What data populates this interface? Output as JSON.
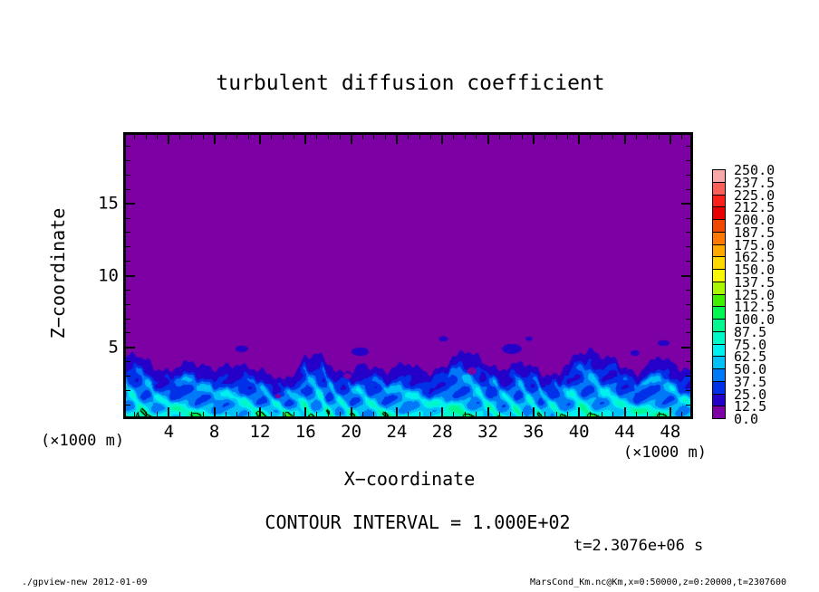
{
  "title": "turbulent diffusion coefficient",
  "axes": {
    "xlabel": "X−coordinate",
    "ylabel": "Z−coordinate",
    "x_unit_left": "(×1000 m)",
    "x_unit_right": "(×1000 m)",
    "xtick_labels": [
      "4",
      "8",
      "12",
      "16",
      "20",
      "24",
      "28",
      "32",
      "36",
      "40",
      "44",
      "48"
    ],
    "xtick_values": [
      4,
      8,
      12,
      16,
      20,
      24,
      28,
      32,
      36,
      40,
      44,
      48
    ],
    "ytick_labels": [
      "5",
      "10",
      "15"
    ],
    "ytick_values": [
      5,
      10,
      15
    ]
  },
  "annotations": {
    "contour_interval": "CONTOUR INTERVAL = 1.000E+02",
    "time": "t=2.3076e+06 s"
  },
  "footer": {
    "left": "./gpview-new  2012-01-09",
    "right": "MarsCond_Km.nc@Km,x=0:50000,z=0:20000,t=2307600"
  },
  "colorbar": {
    "labels_top_to_bottom": [
      "250.0",
      "237.5",
      "225.0",
      "212.5",
      "200.0",
      "187.5",
      "175.0",
      "162.5",
      "150.0",
      "137.5",
      "125.0",
      "112.5",
      "100.0",
      "87.5",
      "75.0",
      "62.5",
      "50.0",
      "37.5",
      "25.0",
      "12.5",
      "0.0"
    ]
  },
  "chart_data": {
    "type": "heatmap",
    "subtype": "filled_contour",
    "title": "turbulent diffusion coefficient",
    "xlabel": "X−coordinate (×1000 m)",
    "ylabel": "Z−coordinate (×1000 m)",
    "x_range": [
      0,
      50
    ],
    "z_range": [
      0,
      20
    ],
    "level_min": 0.0,
    "level_max": 250.0,
    "level_step": 12.5,
    "contour_interval": 100.0,
    "time_label": "t=2.3076e+06 s",
    "legend_position": "right",
    "palette_low_to_high": [
      "#7D00A4",
      "#2400C8",
      "#0030E8",
      "#0078F8",
      "#00C0F8",
      "#00F0F0",
      "#00F8C8",
      "#00F890",
      "#00F850",
      "#40F000",
      "#A8F800",
      "#F8F800",
      "#FFD800",
      "#FFA800",
      "#FF7800",
      "#F04800",
      "#E80000",
      "#F82018",
      "#F86058",
      "#F8A8A8"
    ],
    "description": "Field is ~0 (purple, 0-12.5 band) everywhere above a turbulent boundary layer confined below z≈3-5; the layer contains blue/cyan eddy filaments (values ~25-90) with a few green maxima exceeding 100 outlined by the 100-contour, e.g. near x≈1.3, x≈24.6 and x≈41.",
    "boundary_heights": [
      4.2,
      4.6,
      4.1,
      3.5,
      3.3,
      3.8,
      4.0,
      3.7,
      3.5,
      3.7,
      3.8,
      3.6,
      3.4,
      3.1,
      2.7,
      3.2,
      4.3,
      4.6,
      3.9,
      3.2,
      3.4,
      3.8,
      3.6,
      3.3,
      3.7,
      3.9,
      3.5,
      3.2,
      3.6,
      4.3,
      4.8,
      4.4,
      3.8,
      3.4,
      3.7,
      4.0,
      3.6,
      3.1,
      3.0,
      3.9,
      4.6,
      4.8,
      4.4,
      4.2,
      3.6,
      3.1,
      3.8,
      4.4,
      4.0,
      3.5,
      3.3
    ],
    "peaks": [
      {
        "x": 1.3,
        "h": 2.1,
        "w": 0.22,
        "a": 132
      },
      {
        "x": 13.2,
        "h": 0.5,
        "w": 0.35,
        "a": 106
      },
      {
        "x": 24.6,
        "h": 0.75,
        "w": 0.8,
        "a": 118
      },
      {
        "x": 33.8,
        "h": 0.45,
        "w": 0.5,
        "a": 104
      },
      {
        "x": 41.0,
        "h": 1.7,
        "w": 0.28,
        "a": 128
      },
      {
        "x": 47.6,
        "h": 0.4,
        "w": 0.4,
        "a": 104
      }
    ],
    "puffs": [
      {
        "x": 10.4,
        "z": 4.9,
        "rx": 0.55,
        "rz": 0.22
      },
      {
        "x": 20.8,
        "z": 4.7,
        "rx": 0.75,
        "rz": 0.3
      },
      {
        "x": 28.1,
        "z": 5.6,
        "rx": 0.4,
        "rz": 0.18
      },
      {
        "x": 34.1,
        "z": 4.9,
        "rx": 0.85,
        "rz": 0.35
      },
      {
        "x": 35.6,
        "z": 5.6,
        "rx": 0.3,
        "rz": 0.15
      },
      {
        "x": 44.9,
        "z": 4.6,
        "rx": 0.4,
        "rz": 0.2
      },
      {
        "x": 47.4,
        "z": 5.3,
        "rx": 0.5,
        "rz": 0.22
      }
    ],
    "holes": [
      {
        "x": 19.7,
        "z": 3.0,
        "rx": 0.35,
        "rz": 0.2
      },
      {
        "x": 30.6,
        "z": 3.35,
        "rx": 0.4,
        "rz": 0.25
      },
      {
        "x": 13.6,
        "z": 1.6,
        "rx": 0.25,
        "rz": 0.15
      }
    ]
  }
}
